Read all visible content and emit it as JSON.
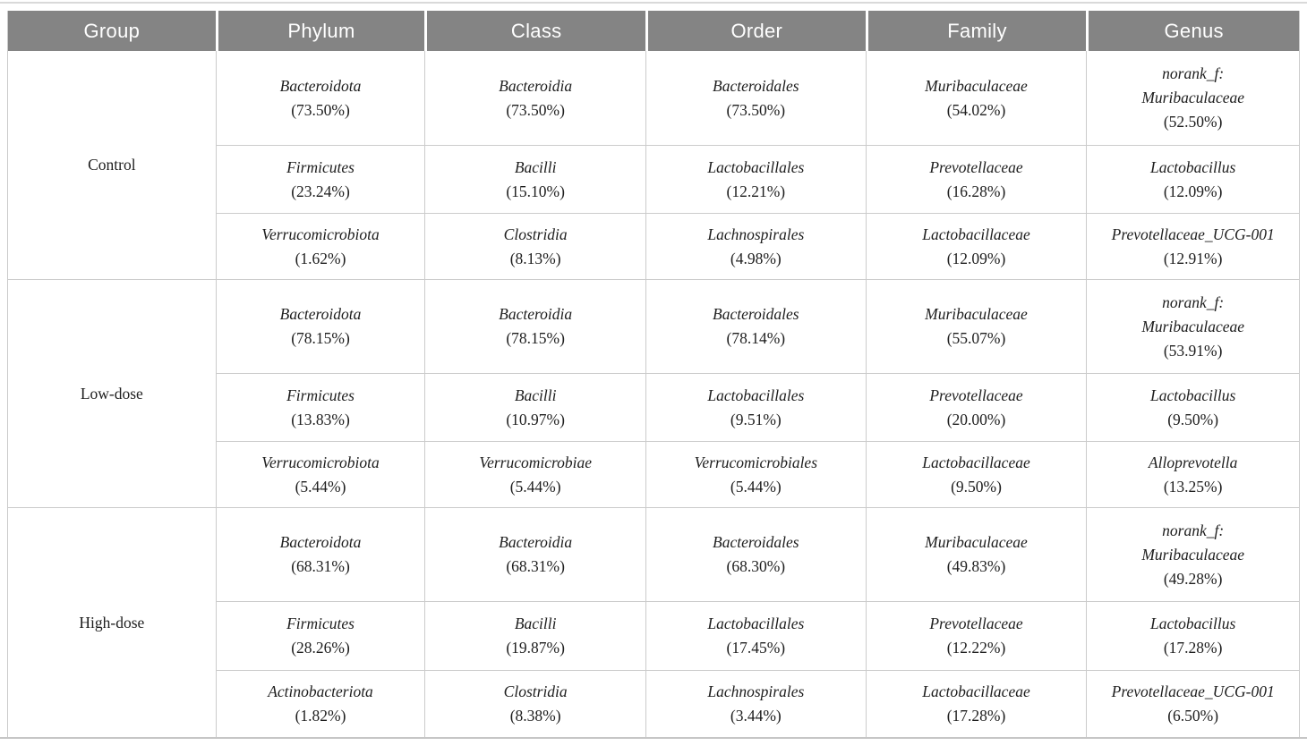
{
  "colors": {
    "header_bg": "#848484",
    "header_text": "#ffffff",
    "rule": "#cbcbcb",
    "cell_text": "#1e1e1e"
  },
  "table": {
    "headers": [
      "Group",
      "Phylum",
      "Class",
      "Order",
      "Family",
      "Genus"
    ],
    "groups": [
      {
        "label": "Control",
        "rows": [
          {
            "cells": [
              {
                "name": "Bacteroidota",
                "pct": "(73.50%)"
              },
              {
                "name": "Bacteroidia",
                "pct": "(73.50%)"
              },
              {
                "name": "Bacteroidales",
                "pct": "(73.50%)"
              },
              {
                "name": "Muribaculaceae",
                "pct": "(54.02%)"
              },
              {
                "name": "norank_f:\nMuribaculaceae",
                "pct": "(52.50%)"
              }
            ]
          },
          {
            "cells": [
              {
                "name": "Firmicutes",
                "pct": "(23.24%)"
              },
              {
                "name": "Bacilli",
                "pct": "(15.10%)"
              },
              {
                "name": "Lactobacillales",
                "pct": "(12.21%)"
              },
              {
                "name": "Prevotellaceae",
                "pct": "(16.28%)"
              },
              {
                "name": "Lactobacillus",
                "pct": "(12.09%)"
              }
            ]
          },
          {
            "cells": [
              {
                "name": "Verrucomicrobiota",
                "pct": "(1.62%)"
              },
              {
                "name": "Clostridia",
                "pct": "(8.13%)"
              },
              {
                "name": "Lachnospirales",
                "pct": "(4.98%)"
              },
              {
                "name": "Lactobacillaceae",
                "pct": "(12.09%)"
              },
              {
                "name": "Prevotellaceae_UCG-001",
                "pct": "(12.91%)"
              }
            ]
          }
        ]
      },
      {
        "label": "Low-dose",
        "rows": [
          {
            "cells": [
              {
                "name": "Bacteroidota",
                "pct": "(78.15%)"
              },
              {
                "name": "Bacteroidia",
                "pct": "(78.15%)"
              },
              {
                "name": "Bacteroidales",
                "pct": "(78.14%)"
              },
              {
                "name": "Muribaculaceae",
                "pct": "(55.07%)"
              },
              {
                "name": "norank_f:\nMuribaculaceae",
                "pct": "(53.91%)"
              }
            ]
          },
          {
            "cells": [
              {
                "name": "Firmicutes",
                "pct": "(13.83%)"
              },
              {
                "name": "Bacilli",
                "pct": "(10.97%)"
              },
              {
                "name": "Lactobacillales",
                "pct": "(9.51%)"
              },
              {
                "name": "Prevotellaceae",
                "pct": "(20.00%)"
              },
              {
                "name": "Lactobacillus",
                "pct": "(9.50%)"
              }
            ]
          },
          {
            "cells": [
              {
                "name": "Verrucomicrobiota",
                "pct": "(5.44%)"
              },
              {
                "name": "Verrucomicrobiae",
                "pct": "(5.44%)"
              },
              {
                "name": "Verrucomicrobiales",
                "pct": "(5.44%)"
              },
              {
                "name": "Lactobacillaceae",
                "pct": "(9.50%)"
              },
              {
                "name": "Alloprevotella",
                "pct": "(13.25%)"
              }
            ]
          }
        ]
      },
      {
        "label": "High-dose",
        "rows": [
          {
            "cells": [
              {
                "name": "Bacteroidota",
                "pct": "(68.31%)"
              },
              {
                "name": "Bacteroidia",
                "pct": "(68.31%)"
              },
              {
                "name": "Bacteroidales",
                "pct": "(68.30%)"
              },
              {
                "name": "Muribaculaceae",
                "pct": "(49.83%)"
              },
              {
                "name": "norank_f:\nMuribaculaceae",
                "pct": "(49.28%)"
              }
            ]
          },
          {
            "cells": [
              {
                "name": "Firmicutes",
                "pct": "(28.26%)"
              },
              {
                "name": "Bacilli",
                "pct": "(19.87%)"
              },
              {
                "name": "Lactobacillales",
                "pct": "(17.45%)"
              },
              {
                "name": "Prevotellaceae",
                "pct": "(12.22%)"
              },
              {
                "name": "Lactobacillus",
                "pct": "(17.28%)"
              }
            ]
          },
          {
            "cells": [
              {
                "name": "Actinobacteriota",
                "pct": "(1.82%)"
              },
              {
                "name": "Clostridia",
                "pct": "(8.38%)"
              },
              {
                "name": "Lachnospirales",
                "pct": "(3.44%)"
              },
              {
                "name": "Lactobacillaceae",
                "pct": "(17.28%)"
              },
              {
                "name": "Prevotellaceae_UCG-001",
                "pct": "(6.50%)"
              }
            ]
          }
        ]
      }
    ]
  }
}
